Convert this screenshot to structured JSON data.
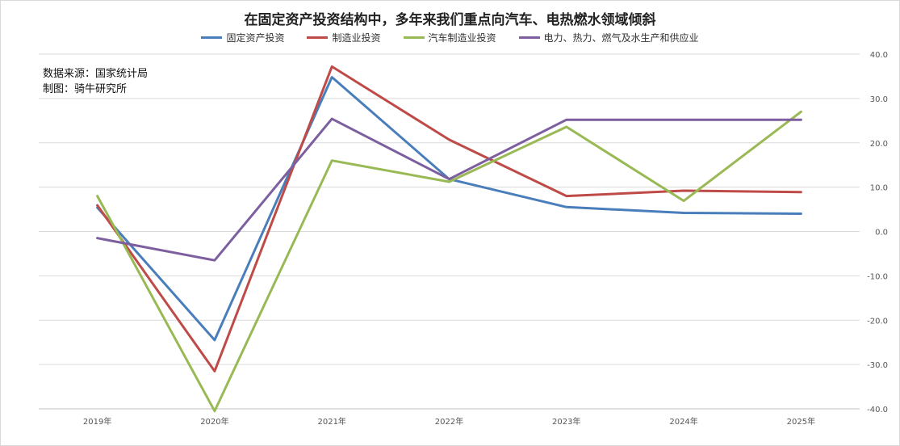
{
  "chart_data": {
    "type": "line",
    "title": "在固定资产投资结构中，多年来我们重点向汽车、电热燃水领域倾斜",
    "categories": [
      "2019年",
      "2020年",
      "2021年",
      "2022年",
      "2023年",
      "2024年",
      "2025年"
    ],
    "series": [
      {
        "name": "固定资产投资",
        "color": "#4a7ebb",
        "values": [
          5.4,
          -24.5,
          34.8,
          11.8,
          5.5,
          4.2,
          4.0
        ]
      },
      {
        "name": "制造业投资",
        "color": "#be4b48",
        "values": [
          5.9,
          -31.5,
          37.2,
          20.7,
          8.0,
          9.2,
          8.9
        ]
      },
      {
        "name": "汽车制造业投资",
        "color": "#98b954",
        "values": [
          8.0,
          -40.5,
          16.0,
          11.2,
          23.6,
          6.9,
          27.0
        ]
      },
      {
        "name": "电力、热力、燃气及水生产和供应业",
        "color": "#7d5f9f",
        "values": [
          -1.5,
          -6.5,
          25.4,
          11.8,
          25.2,
          25.2,
          25.2
        ]
      }
    ],
    "ylim": [
      -40,
      40
    ],
    "yticks": [
      "-40.0",
      "-30.0",
      "-20.0",
      "-10.0",
      "0.0",
      "10.0",
      "20.0",
      "30.0",
      "40.0"
    ],
    "yaxis_position": "right",
    "grid": true,
    "legend_position": "top"
  },
  "source_lines": [
    "数据来源：国家统计局",
    "制图：骑牛研究所"
  ]
}
